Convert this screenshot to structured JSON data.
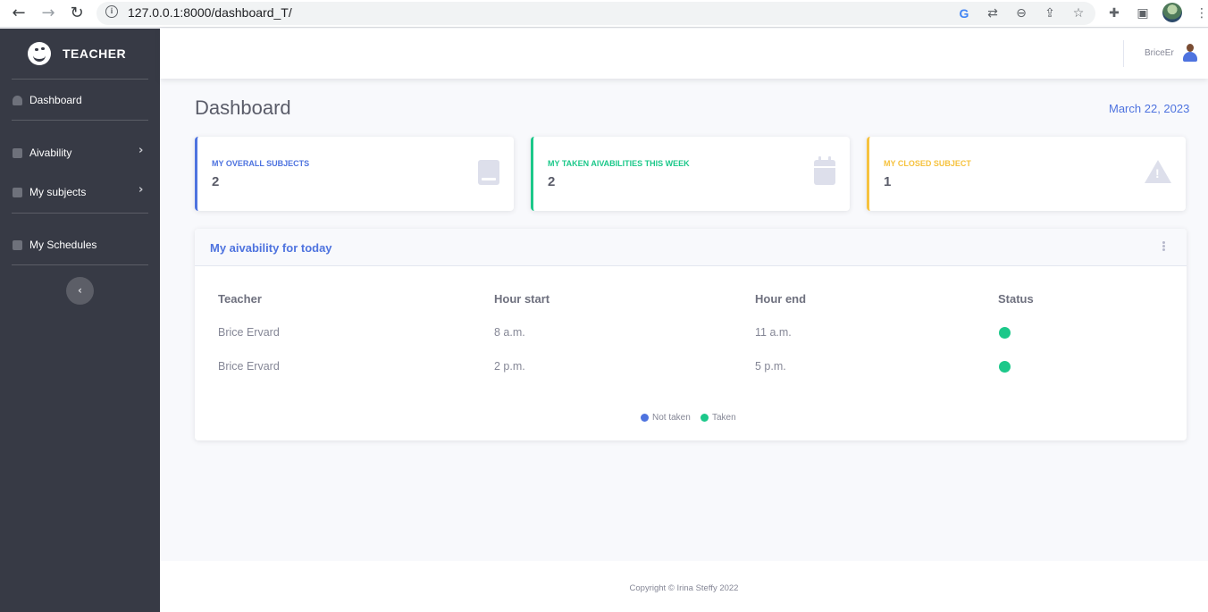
{
  "browser": {
    "url": "127.0.0.1:8000/dashboard_T/"
  },
  "sidebar": {
    "brand": "TEACHER",
    "items": [
      {
        "label": "Dashboard",
        "icon": "tachometer-icon",
        "has_submenu": false
      },
      {
        "label": "Aivability",
        "icon": "clipboard-icon",
        "has_submenu": true
      },
      {
        "label": "My subjects",
        "icon": "book-icon",
        "has_submenu": true
      },
      {
        "label": "My Schedules",
        "icon": "calendar-icon",
        "has_submenu": false
      }
    ]
  },
  "topbar": {
    "username": "BriceEr"
  },
  "main": {
    "title": "Dashboard",
    "date": "March 22, 2023",
    "stats": [
      {
        "title": "MY OVERALL SUBJECTS",
        "value": "2",
        "color": "#4e73df",
        "icon": "book-icon"
      },
      {
        "title": "MY TAKEN AIVABILITIES THIS WEEK",
        "value": "2",
        "color": "#1cc88a",
        "icon": "calendar-icon"
      },
      {
        "title": "MY CLOSED SUBJECT",
        "value": "1",
        "color": "#f6c23e",
        "icon": "warning-icon"
      }
    ],
    "panel": {
      "title": "My aivability for today",
      "columns": [
        "Teacher",
        "Hour start",
        "Hour end",
        "Status"
      ],
      "rows": [
        {
          "teacher": "Brice Ervard",
          "start": "8 a.m.",
          "end": "11 a.m.",
          "status": "taken"
        },
        {
          "teacher": "Brice Ervard",
          "start": "2 p.m.",
          "end": "5 p.m.",
          "status": "taken"
        }
      ],
      "legend": [
        {
          "label": "Not taken",
          "color": "#4e73df"
        },
        {
          "label": "Taken",
          "color": "#1cc88a"
        }
      ]
    }
  },
  "footer": {
    "copyright": "Copyright © Irina Steffy 2022"
  }
}
